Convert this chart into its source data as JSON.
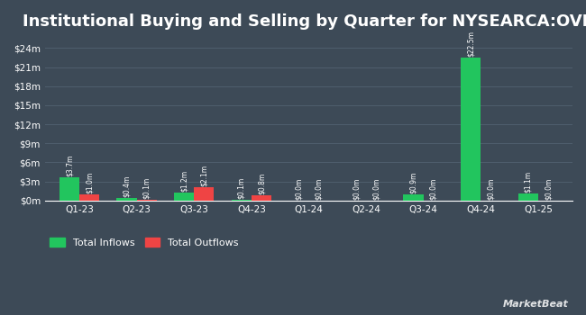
{
  "title": "Institutional Buying and Selling by Quarter for NYSEARCA:OVB",
  "quarters": [
    "Q1-23",
    "Q2-23",
    "Q3-23",
    "Q4-23",
    "Q1-24",
    "Q2-24",
    "Q3-24",
    "Q4-24",
    "Q1-25"
  ],
  "inflows": [
    3.7,
    0.4,
    1.2,
    0.1,
    0.0,
    0.0,
    0.9,
    22.5,
    1.1
  ],
  "outflows": [
    1.0,
    0.1,
    2.1,
    0.8,
    0.0,
    0.0,
    0.0,
    0.0,
    0.0
  ],
  "inflow_labels": [
    "$3.7m",
    "$0.4m",
    "$1.2m",
    "$0.1m",
    "$0.0m",
    "$0.0m",
    "$0.9m",
    "$22.5m",
    "$1.1m"
  ],
  "outflow_labels": [
    "$1.0m",
    "$0.1m",
    "$2.1m",
    "$0.8m",
    "$0.0m",
    "$0.0m",
    "$0.0m",
    "$0.0m",
    "$0.0m"
  ],
  "inflow_color": "#22c55e",
  "outflow_color": "#ef4444",
  "bg_color": "#3d4a57",
  "text_color": "#ffffff",
  "grid_color": "#4f5e6d",
  "yticks": [
    0,
    3,
    6,
    9,
    12,
    15,
    18,
    21,
    24
  ],
  "ytick_labels": [
    "$0m",
    "$3m",
    "$6m",
    "$9m",
    "$12m",
    "$15m",
    "$18m",
    "$21m",
    "$24m"
  ],
  "ylim": [
    0,
    25.5
  ],
  "title_fontsize": 13,
  "legend_label_inflows": "Total Inflows",
  "legend_label_outflows": "Total Outflows",
  "bar_width": 0.35,
  "label_fontsize": 5.5
}
